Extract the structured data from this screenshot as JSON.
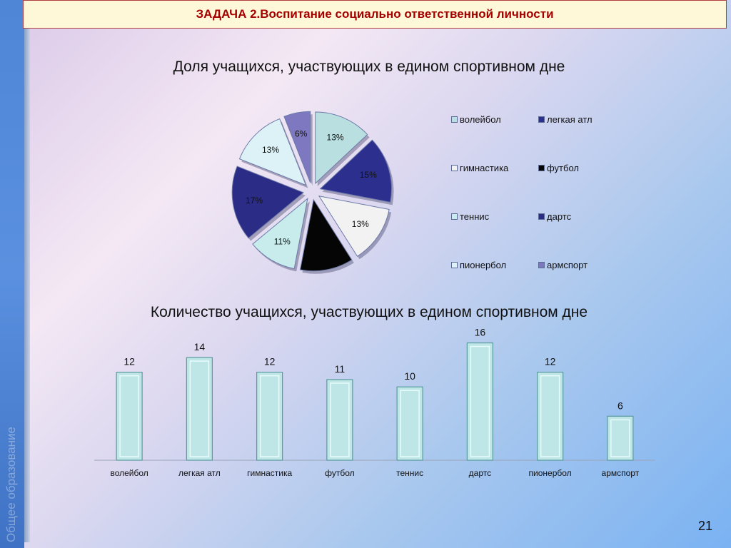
{
  "header": {
    "title": "ЗАДАЧА 2.Воспитание социально ответственной личности"
  },
  "sidebar": {
    "text": "Общее образование"
  },
  "page_number": "21",
  "chart_data": [
    {
      "type": "pie",
      "title": "Доля учащихся, участвующих в едином спортивном дне",
      "categories": [
        "волейбол",
        "легкая атл",
        "гимнастика",
        "футбол",
        "теннис",
        "дартс",
        "пионербол",
        "армспорт"
      ],
      "values": [
        13,
        15,
        13,
        12,
        11,
        17,
        13,
        6
      ],
      "data_labels": [
        "13%",
        "15%",
        "13%",
        "",
        "11%",
        "17%",
        "13%",
        "6%"
      ],
      "colors": [
        "#b9dfe0",
        "#2d2f8e",
        "#f2f2f2",
        "#050505",
        "#c8ecec",
        "#2a2c86",
        "#ddf2f6",
        "#7d78c0"
      ],
      "exploded": true,
      "legend": "right"
    },
    {
      "type": "bar",
      "title": "Количество учащихся, участвующих в едином спортивном дне",
      "categories": [
        "волейбол",
        "легкая атл",
        "гимнастика",
        "футбол",
        "теннис",
        "дартс",
        "пионербол",
        "армспорт"
      ],
      "values": [
        12,
        14,
        12,
        11,
        10,
        16,
        12,
        6
      ],
      "ylim": [
        0,
        18
      ],
      "grid": false,
      "bar_color": "#bfe6e6"
    }
  ]
}
